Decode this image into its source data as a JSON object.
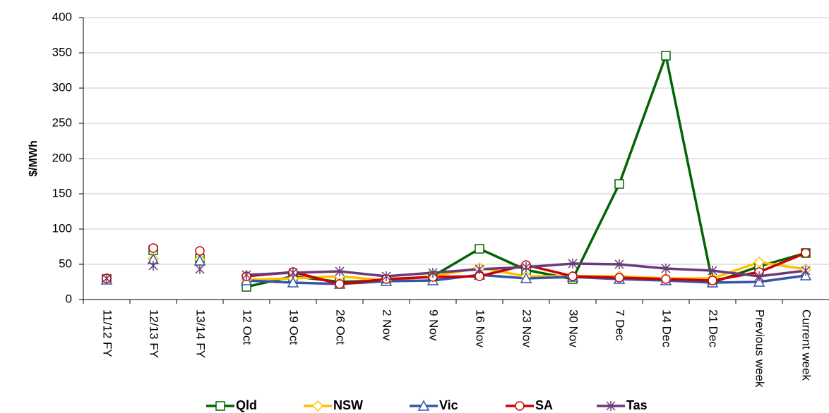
{
  "chart_data": {
    "type": "line",
    "y_label": "$/MWh",
    "categories": [
      "11/12 FY",
      "12/13 FY",
      "13/14 FY",
      "12 Oct",
      "19 Oct",
      "26 Oct",
      "2 Nov",
      "9 Nov",
      "16 Nov",
      "23 Nov",
      "30 Nov",
      "7 Dec",
      "14 Dec",
      "21 Dec",
      "Previous week",
      "Current week"
    ],
    "line_start": 3,
    "series": [
      {
        "name": "Qld",
        "color": "#006400",
        "marker": "square",
        "values": [
          29,
          70,
          58,
          18,
          33,
          25,
          27,
          33,
          72,
          42,
          29,
          164,
          346,
          24,
          47,
          66
        ]
      },
      {
        "name": "NSW",
        "color": "#ffc000",
        "marker": "diamond",
        "values": [
          30,
          58,
          57,
          28,
          30,
          33,
          27,
          33,
          45,
          33,
          33,
          33,
          30,
          30,
          53,
          43
        ]
      },
      {
        "name": "Vic",
        "color": "#3355aa",
        "marker": "triangle",
        "values": [
          28,
          57,
          55,
          27,
          24,
          22,
          26,
          27,
          35,
          30,
          32,
          29,
          27,
          24,
          25,
          34
        ]
      },
      {
        "name": "SA",
        "color": "#cc0000",
        "marker": "circle",
        "values": [
          30,
          73,
          69,
          33,
          39,
          22,
          29,
          32,
          33,
          49,
          33,
          31,
          29,
          27,
          39,
          66
        ]
      },
      {
        "name": "Tas",
        "color": "#6b3a7a",
        "marker": "asterisk",
        "values": [
          30,
          48,
          43,
          35,
          38,
          40,
          33,
          38,
          43,
          46,
          51,
          50,
          44,
          41,
          33,
          41
        ]
      }
    ],
    "ylim": [
      0,
      400
    ],
    "yticks": [
      0,
      50,
      100,
      150,
      200,
      250,
      300,
      350,
      400
    ],
    "grid": true
  }
}
